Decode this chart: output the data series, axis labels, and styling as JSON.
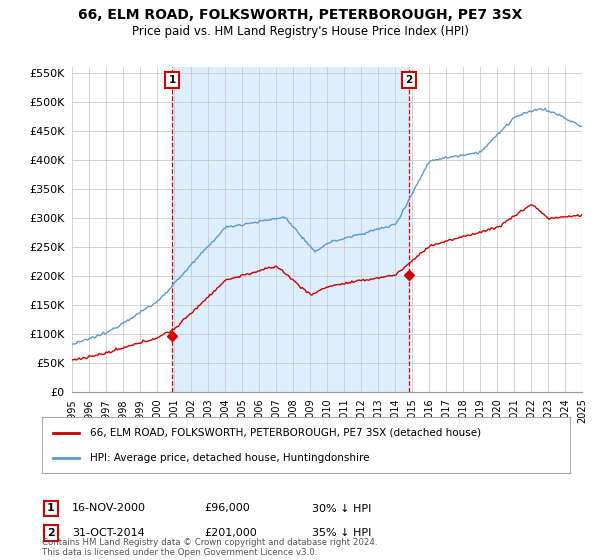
{
  "title": "66, ELM ROAD, FOLKSWORTH, PETERBOROUGH, PE7 3SX",
  "subtitle": "Price paid vs. HM Land Registry's House Price Index (HPI)",
  "legend_label_red": "66, ELM ROAD, FOLKSWORTH, PETERBOROUGH, PE7 3SX (detached house)",
  "legend_label_blue": "HPI: Average price, detached house, Huntingdonshire",
  "transaction1_label": "1",
  "transaction1_date": "16-NOV-2000",
  "transaction1_price": "£96,000",
  "transaction1_hpi": "30% ↓ HPI",
  "transaction1_year": 2000.88,
  "transaction2_label": "2",
  "transaction2_date": "31-OCT-2014",
  "transaction2_price": "£201,000",
  "transaction2_hpi": "35% ↓ HPI",
  "transaction2_year": 2014.83,
  "footnote": "Contains HM Land Registry data © Crown copyright and database right 2024.\nThis data is licensed under the Open Government Licence v3.0.",
  "ylim": [
    0,
    560000
  ],
  "yticks": [
    0,
    50000,
    100000,
    150000,
    200000,
    250000,
    300000,
    350000,
    400000,
    450000,
    500000,
    550000
  ],
  "xlim": [
    1995,
    2025
  ],
  "background_color": "#ffffff",
  "red_color": "#cc0000",
  "blue_color": "#5b9bd5",
  "shade_color": "#ddeeff",
  "grid_color": "#cccccc"
}
